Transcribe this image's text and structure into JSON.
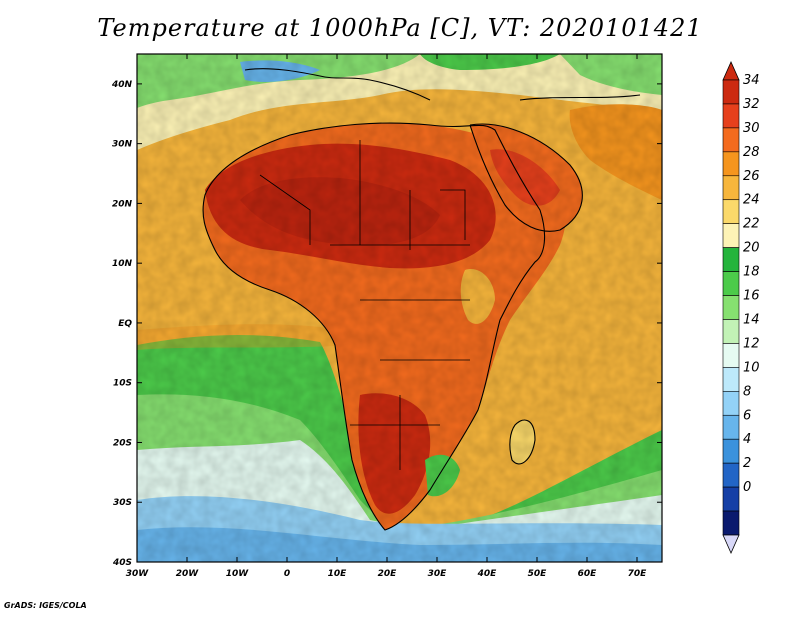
{
  "title": "Temperature at 1000hPa [C], VT: 2020101421",
  "credit": "GrADS: IGES/COLA",
  "map": {
    "lon_range": [
      -30,
      75
    ],
    "lat_range": [
      -40,
      45
    ],
    "lon_ticks": [
      "30W",
      "20W",
      "10W",
      "0",
      "10E",
      "20E",
      "30E",
      "40E",
      "50E",
      "60E",
      "70E"
    ],
    "lat_ticks": [
      "40N",
      "30N",
      "20N",
      "10N",
      "EQ",
      "10S",
      "20S",
      "30S",
      "40S"
    ]
  },
  "colorbar": {
    "labels": [
      "34",
      "32",
      "30",
      "28",
      "26",
      "24",
      "22",
      "20",
      "18",
      "16",
      "14",
      "12",
      "10",
      "8",
      "6",
      "4",
      "2",
      "0"
    ],
    "colors": [
      "#cc2a10",
      "#e6401c",
      "#f46b1e",
      "#f5951e",
      "#f7b63c",
      "#fbd96a",
      "#fdf3b6",
      "#24b43c",
      "#4ccb4a",
      "#86e070",
      "#c2f2b6",
      "#e6fbf2",
      "#bde9fb",
      "#93d2f7",
      "#67b5ec",
      "#3b92dc",
      "#2265c6",
      "#153fa6",
      "#0a1a6e"
    ],
    "top_arrow_color": "#cc2a10",
    "bottom_arrow_color": "#d8d8f8"
  }
}
